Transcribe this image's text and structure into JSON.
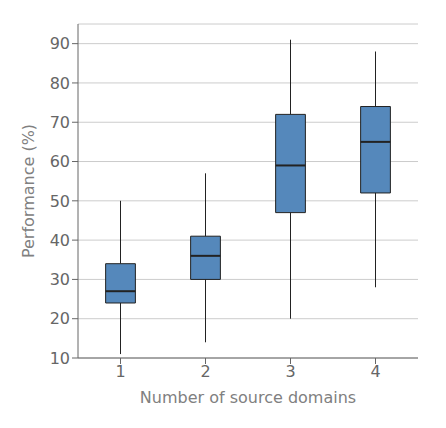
{
  "chart_data": {
    "type": "box",
    "x": [
      1,
      2,
      3,
      4
    ],
    "whisker_low": [
      11,
      14,
      20,
      28
    ],
    "q1": [
      24,
      30,
      47,
      52
    ],
    "median": [
      27,
      36,
      59,
      65
    ],
    "q3": [
      34,
      41,
      72,
      74
    ],
    "whisker_high": [
      50,
      57,
      91,
      88
    ],
    "color": "#5588bb",
    "xlabel": "Number of source domains",
    "ylabel": "Performance (%)",
    "xlim": [
      0.5,
      4.5
    ],
    "ylim": [
      10,
      95
    ],
    "xticks": [
      1,
      2,
      3,
      4
    ],
    "yticks": [
      10,
      20,
      30,
      40,
      50,
      60,
      70,
      80,
      90
    ],
    "grid": true
  }
}
